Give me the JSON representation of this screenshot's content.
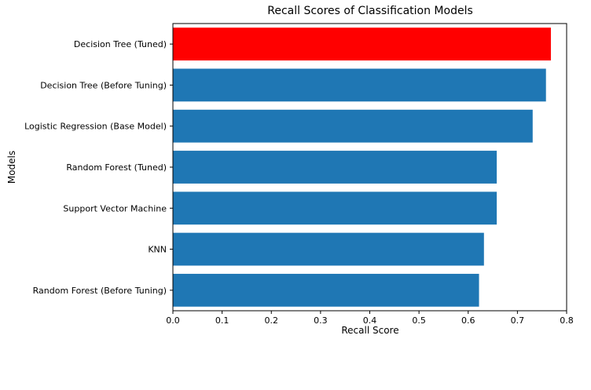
{
  "chart_data": {
    "type": "bar",
    "orientation": "horizontal",
    "title": "Recall Scores of Classification Models",
    "xlabel": "Recall Score",
    "ylabel": "Models",
    "xlim": [
      0,
      0.8
    ],
    "xticks": [
      "0.0",
      "0.1",
      "0.2",
      "0.3",
      "0.4",
      "0.5",
      "0.6",
      "0.7",
      "0.8"
    ],
    "grid": false,
    "categories": [
      "Decision Tree (Tuned)",
      "Decision Tree (Before Tuning)",
      "Logistic Regression (Base Model)",
      "Random Forest (Tuned)",
      "Support Vector Machine",
      "KNN",
      "Random Forest (Before Tuning)"
    ],
    "values": [
      0.768,
      0.758,
      0.731,
      0.658,
      0.658,
      0.632,
      0.622
    ],
    "colors": [
      "#ff0000",
      "#1f77b4",
      "#1f77b4",
      "#1f77b4",
      "#1f77b4",
      "#1f77b4",
      "#1f77b4"
    ]
  }
}
